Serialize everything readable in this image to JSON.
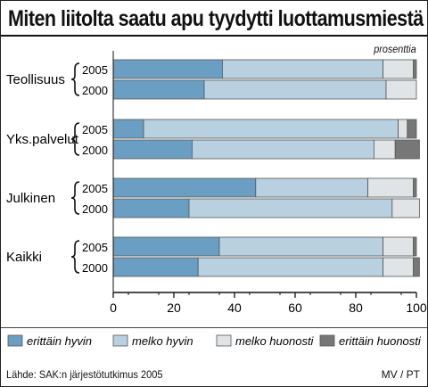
{
  "title": "Miten liitolta saatu apu tyydytti luottamusmiestä",
  "unit_label": "prosenttia",
  "source": "Lähde: SAK:n järjestötutkimus 2005",
  "credit": "MV / PT",
  "colors": {
    "erittain_hyvin": "#6a9fc3",
    "melko_hyvin": "#b9d0e0",
    "melko_huonosti": "#e1e4e6",
    "erittain_huonosti": "#777777",
    "bar_outline": "#555555"
  },
  "chart_data": {
    "type": "bar",
    "orientation": "horizontal",
    "stacked": true,
    "title": "Miten liitolta saatu apu tyydytti luottamusmiestä",
    "xlabel": "",
    "ylabel": "",
    "xlim": [
      0,
      100
    ],
    "xticks": [
      0,
      20,
      40,
      60,
      80,
      100
    ],
    "legend_position": "bottom",
    "grid": false,
    "categories": [
      "Teollisuus",
      "Yks.palvelut",
      "Julkinen",
      "Kaikki"
    ],
    "years": [
      "2005",
      "2000"
    ],
    "series": [
      {
        "name": "erittäin hyvin",
        "color_key": "erittain_hyvin",
        "values": [
          [
            36,
            30
          ],
          [
            10,
            26
          ],
          [
            47,
            25
          ],
          [
            35,
            28
          ]
        ]
      },
      {
        "name": "melko hyvin",
        "color_key": "melko_hyvin",
        "values": [
          [
            53,
            60
          ],
          [
            84,
            60
          ],
          [
            37,
            67
          ],
          [
            54,
            61
          ]
        ]
      },
      {
        "name": "melko huonosti",
        "color_key": "melko_huonosti",
        "values": [
          [
            10,
            10
          ],
          [
            3,
            7
          ],
          [
            15,
            9
          ],
          [
            10,
            10
          ]
        ]
      },
      {
        "name": "erittäin huonosti",
        "color_key": "erittain_huonosti",
        "values": [
          [
            1,
            0
          ],
          [
            3,
            8
          ],
          [
            1,
            0
          ],
          [
            1,
            2
          ]
        ]
      }
    ]
  }
}
